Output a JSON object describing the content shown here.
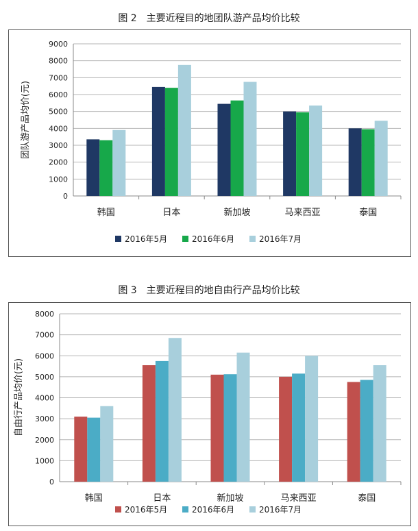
{
  "figures": [
    {
      "caption": "图 2　主要近程目的地团队游产品均价比较",
      "chart_data": {
        "type": "bar",
        "title": "",
        "xlabel": "",
        "ylabel": "团队游产品均价(元)",
        "ylim": [
          0,
          9000
        ],
        "yticks": [
          0,
          1000,
          2000,
          3000,
          4000,
          5000,
          6000,
          7000,
          8000,
          9000
        ],
        "grid": true,
        "legend_position": "bottom",
        "categories": [
          "韩国",
          "日本",
          "新加坡",
          "马来西亚",
          "泰国"
        ],
        "series": [
          {
            "name": "2016年5月",
            "color": "#1f3864",
            "values": [
              3350,
              6450,
              5450,
              5000,
              4000
            ]
          },
          {
            "name": "2016年6月",
            "color": "#17a84a",
            "values": [
              3300,
              6400,
              5650,
              4950,
              3950
            ]
          },
          {
            "name": "2016年7月",
            "color": "#a8cfdc",
            "values": [
              3900,
              7750,
              6750,
              5350,
              4450
            ]
          }
        ]
      }
    },
    {
      "caption": "图 3　主要近程目的地自由行产品均价比较",
      "chart_data": {
        "type": "bar",
        "title": "",
        "xlabel": "",
        "ylabel": "自由行产品均价(元)",
        "ylim": [
          0,
          8000
        ],
        "yticks": [
          0,
          1000,
          2000,
          3000,
          4000,
          5000,
          6000,
          7000,
          8000
        ],
        "grid": true,
        "legend_position": "bottom",
        "categories": [
          "韩国",
          "日本",
          "新加坡",
          "马来西亚",
          "泰国"
        ],
        "series": [
          {
            "name": "2016年5月",
            "color": "#c0504d",
            "values": [
              3100,
              5550,
              5100,
              5000,
              4750
            ]
          },
          {
            "name": "2016年6月",
            "color": "#4bacc6",
            "values": [
              3050,
              5750,
              5120,
              5150,
              4850
            ]
          },
          {
            "name": "2016年7月",
            "color": "#a8cfdc",
            "values": [
              3600,
              6850,
              6150,
              6000,
              5550
            ]
          }
        ]
      }
    }
  ]
}
